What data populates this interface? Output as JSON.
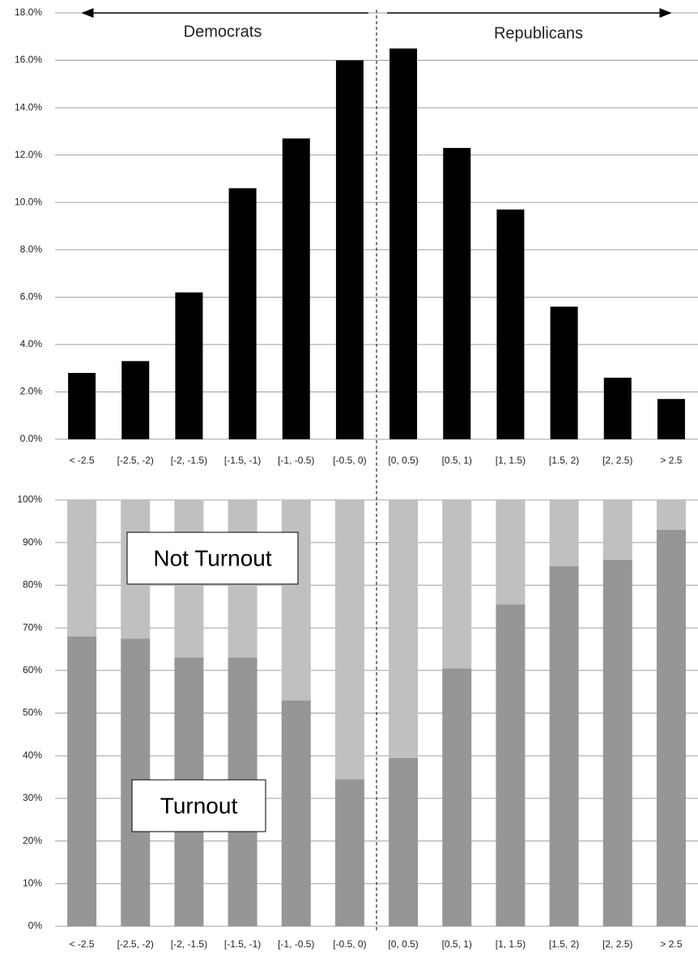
{
  "chart_data": [
    {
      "type": "bar",
      "annotations": [
        "Democrats",
        "Republicans"
      ],
      "categories": [
        "< -2.5",
        "[-2.5, -2)",
        "[-2, -1.5)",
        "[-1.5, -1)",
        "[-1, -0.5)",
        "[-0.5, 0)",
        "[0, 0.5)",
        "[0.5, 1)",
        "[1, 1.5)",
        "[1.5, 2)",
        "[2, 2.5)",
        "> 2.5"
      ],
      "values": [
        2.8,
        3.3,
        6.2,
        10.6,
        12.7,
        16.0,
        16.5,
        12.3,
        9.7,
        5.6,
        2.6,
        1.7
      ],
      "color": "#000000",
      "ylim": [
        0,
        18
      ],
      "yticks": [
        {
          "value": 0,
          "label": "0.0%"
        },
        {
          "value": 2,
          "label": "2.0%"
        },
        {
          "value": 4,
          "label": "4.0%"
        },
        {
          "value": 6,
          "label": "6.0%"
        },
        {
          "value": 8,
          "label": "8.0%"
        },
        {
          "value": 10,
          "label": "10.0%"
        },
        {
          "value": 12,
          "label": "12.0%"
        },
        {
          "value": 14,
          "label": "14.0%"
        },
        {
          "value": 16,
          "label": "16.0%"
        },
        {
          "value": 18,
          "label": "18.0%"
        }
      ],
      "grid": true
    },
    {
      "type": "stacked_bar",
      "categories": [
        "< -2.5",
        "[-2.5, -2)",
        "[-2, -1.5)",
        "[-1.5, -1)",
        "[-1, -0.5)",
        "[-0.5, 0)",
        "[0, 0.5)",
        "[0.5, 1)",
        "[1, 1.5)",
        "[1.5, 2)",
        "[2, 2.5)",
        "> 2.5"
      ],
      "series": [
        {
          "name": "Turnout",
          "color": "#969696",
          "values": [
            68,
            67.5,
            63,
            63,
            53,
            34.5,
            39.5,
            60.5,
            75.5,
            84.5,
            86,
            93
          ]
        },
        {
          "name": "Not Turnout",
          "color": "#c0c0c0",
          "values": [
            32,
            32.5,
            37,
            37,
            47,
            65.5,
            60.5,
            39.5,
            24.5,
            15.5,
            14,
            7
          ]
        }
      ],
      "ylim": [
        0,
        100
      ],
      "yticks": [
        {
          "value": 0,
          "label": "0%"
        },
        {
          "value": 10,
          "label": "10%"
        },
        {
          "value": 20,
          "label": "20%"
        },
        {
          "value": 30,
          "label": "30%"
        },
        {
          "value": 40,
          "label": "40%"
        },
        {
          "value": 50,
          "label": "50%"
        },
        {
          "value": 60,
          "label": "60%"
        },
        {
          "value": 70,
          "label": "70%"
        },
        {
          "value": 80,
          "label": "80%"
        },
        {
          "value": 90,
          "label": "90%"
        },
        {
          "value": 100,
          "label": "100%"
        }
      ],
      "grid": true
    }
  ]
}
